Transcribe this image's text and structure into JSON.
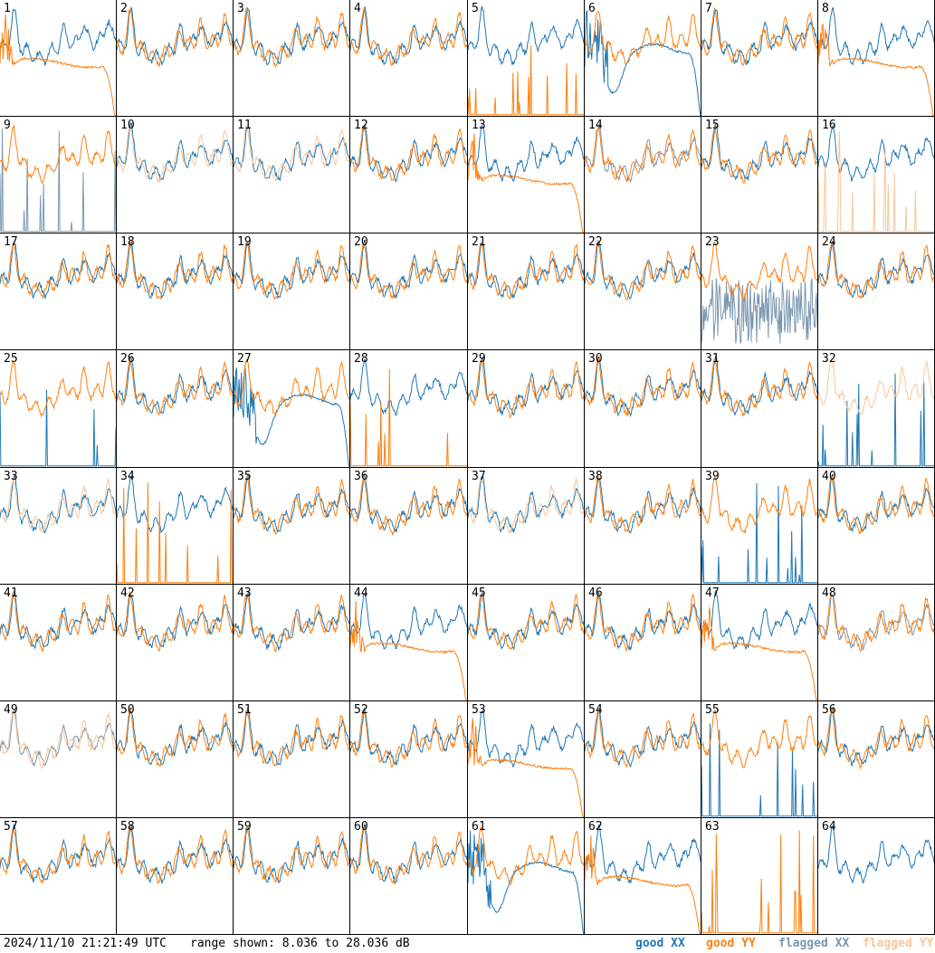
{
  "footer": {
    "timestamp": "2024/11/10 21:21:49 UTC",
    "range_text": "range shown: 8.036 to 28.036 dB"
  },
  "legend": [
    {
      "label": "good XX",
      "color": "#1f77b4"
    },
    {
      "label": "good YY",
      "color": "#ff7f0e"
    },
    {
      "label": "flagged XX",
      "color": "#7a97b0"
    },
    {
      "label": "flagged YY",
      "color": "#f8c69a"
    }
  ],
  "chart_data": {
    "type": "line",
    "grid": "8x8 small multiples of per-antenna spectra",
    "ylim_db": [
      8.036,
      28.036
    ],
    "panels": [
      {
        "id": "1",
        "xx": "good",
        "yy": "good",
        "yy_shape": "roll"
      },
      {
        "id": "2",
        "xx": "good",
        "yy": "good"
      },
      {
        "id": "3",
        "xx": "good",
        "yy": "good"
      },
      {
        "id": "4",
        "xx": "good",
        "yy": "good"
      },
      {
        "id": "5",
        "xx": "good",
        "yy": "good",
        "yy_shape": "spikes"
      },
      {
        "id": "6",
        "xx": "good",
        "yy": "good",
        "xx_shape": "hump"
      },
      {
        "id": "7",
        "xx": "good",
        "yy": "good"
      },
      {
        "id": "8",
        "xx": "good",
        "yy": "good",
        "yy_shape": "roll"
      },
      {
        "id": "9",
        "xx": "flagged",
        "yy": "good",
        "xx_shape": "spikes"
      },
      {
        "id": "10",
        "xx": "good",
        "yy": "flagged"
      },
      {
        "id": "11",
        "xx": "good",
        "yy": "flagged"
      },
      {
        "id": "12",
        "xx": "good",
        "yy": "good"
      },
      {
        "id": "13",
        "xx": "good",
        "yy": "good",
        "yy_shape": "roll"
      },
      {
        "id": "14",
        "xx": "flagged",
        "yy": "good"
      },
      {
        "id": "15",
        "xx": "good",
        "yy": "good"
      },
      {
        "id": "16",
        "xx": "good",
        "yy": "flagged",
        "yy_shape": "spikes"
      },
      {
        "id": "17",
        "xx": "good",
        "yy": "good"
      },
      {
        "id": "18",
        "xx": "good",
        "yy": "good"
      },
      {
        "id": "19",
        "xx": "good",
        "yy": "good"
      },
      {
        "id": "20",
        "xx": "good",
        "yy": "good"
      },
      {
        "id": "21",
        "xx": "good",
        "yy": "good"
      },
      {
        "id": "22",
        "xx": "good",
        "yy": "good"
      },
      {
        "id": "23",
        "xx": "flagged",
        "yy": "good",
        "xx_shape": "noise"
      },
      {
        "id": "24",
        "xx": "good",
        "yy": "good"
      },
      {
        "id": "25",
        "xx": "good",
        "yy": "good",
        "xx_shape": "spikes"
      },
      {
        "id": "26",
        "xx": "good",
        "yy": "good"
      },
      {
        "id": "27",
        "xx": "good",
        "yy": "good",
        "xx_shape": "hump"
      },
      {
        "id": "28",
        "xx": "good",
        "yy": "good",
        "yy_shape": "spikes"
      },
      {
        "id": "29",
        "xx": "good",
        "yy": "good"
      },
      {
        "id": "30",
        "xx": "good",
        "yy": "good"
      },
      {
        "id": "31",
        "xx": "good",
        "yy": "good"
      },
      {
        "id": "32",
        "xx": "good",
        "yy": "flagged",
        "xx_shape": "spikes"
      },
      {
        "id": "33",
        "xx": "good",
        "yy": "flagged"
      },
      {
        "id": "34",
        "xx": "good",
        "yy": "good",
        "yy_shape": "spikes"
      },
      {
        "id": "35",
        "xx": "good",
        "yy": "good"
      },
      {
        "id": "36",
        "xx": "good",
        "yy": "good"
      },
      {
        "id": "37",
        "xx": "good",
        "yy": "flagged"
      },
      {
        "id": "38",
        "xx": "good",
        "yy": "good"
      },
      {
        "id": "39",
        "xx": "good",
        "yy": "good",
        "xx_shape": "spikes"
      },
      {
        "id": "40",
        "xx": "good",
        "yy": "good"
      },
      {
        "id": "41",
        "xx": "good",
        "yy": "good"
      },
      {
        "id": "42",
        "xx": "good",
        "yy": "good"
      },
      {
        "id": "43",
        "xx": "good",
        "yy": "good"
      },
      {
        "id": "44",
        "xx": "good",
        "yy": "good",
        "yy_shape": "roll"
      },
      {
        "id": "45",
        "xx": "good",
        "yy": "good"
      },
      {
        "id": "46",
        "xx": "good",
        "yy": "good"
      },
      {
        "id": "47",
        "xx": "good",
        "yy": "good",
        "yy_shape": "roll"
      },
      {
        "id": "48",
        "xx": "flagged",
        "yy": "good"
      },
      {
        "id": "49",
        "xx": "flagged",
        "yy": "flagged"
      },
      {
        "id": "50",
        "xx": "good",
        "yy": "good"
      },
      {
        "id": "51",
        "xx": "good",
        "yy": "good"
      },
      {
        "id": "52",
        "xx": "good",
        "yy": "good"
      },
      {
        "id": "53",
        "xx": "good",
        "yy": "good",
        "yy_shape": "roll"
      },
      {
        "id": "54",
        "xx": "good",
        "yy": "good"
      },
      {
        "id": "55",
        "xx": "good",
        "yy": "good",
        "xx_shape": "spikes"
      },
      {
        "id": "56",
        "xx": "good",
        "yy": "good"
      },
      {
        "id": "57",
        "xx": "good",
        "yy": "good"
      },
      {
        "id": "58",
        "xx": "good",
        "yy": "good"
      },
      {
        "id": "59",
        "xx": "good",
        "yy": "good"
      },
      {
        "id": "60",
        "xx": "good",
        "yy": "good"
      },
      {
        "id": "61",
        "xx": "good",
        "yy": "good",
        "xx_shape": "hump"
      },
      {
        "id": "62",
        "xx": "good",
        "yy": "good",
        "yy_shape": "roll"
      },
      {
        "id": "63",
        "xx": "none",
        "yy": "good",
        "yy_shape": "spikes"
      },
      {
        "id": "64",
        "xx": "good",
        "yy": "none"
      }
    ]
  }
}
